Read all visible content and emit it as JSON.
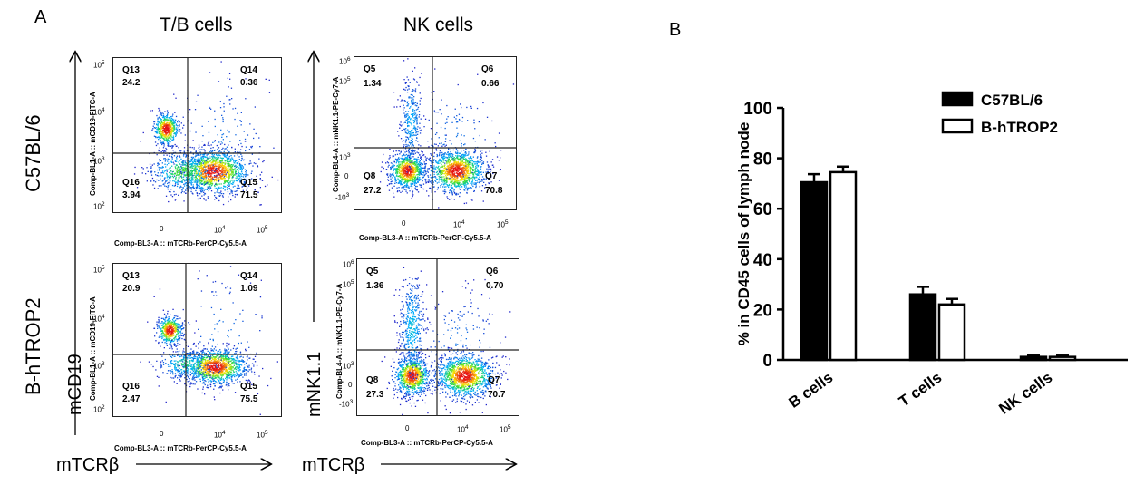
{
  "panel_a": {
    "label": "A",
    "col_titles": [
      "T/B cells",
      "NK cells"
    ],
    "row_labels": [
      "C57BL/6",
      "B-hTROP2"
    ],
    "big_y_left": "mCD19",
    "big_y_right": "mNK1.1",
    "big_x_left": "mTCRβ",
    "big_x_right": "mTCRβ",
    "tb_xtitle": "Comp-BL3-A :: mTCRb-PerCP-Cy5.5-A",
    "tb_ytitle": "Comp-BL1-A :: mCD19-FITC-A",
    "nk_xtitle": "Comp-BL3-A :: mTCRb-PerCP-Cy5.5-A",
    "nk_ytitle": "Comp-BL4-A :: mNK1.1-PE-Cy7-A",
    "tb_yticks": [
      "10",
      "10",
      "10",
      "10"
    ],
    "tb_ytick_exp": [
      "5",
      "4",
      "3",
      "2"
    ],
    "nk_yticks": [
      "10",
      "10",
      "10",
      "0",
      "-10"
    ],
    "nk_ytick_exp": [
      "6",
      "5",
      "3",
      "",
      "3"
    ],
    "xticks": [
      "0",
      "10",
      "10"
    ],
    "xtick_exp": [
      "",
      "4",
      "5"
    ],
    "plots": {
      "tb_c57": {
        "q13": "Q13",
        "v13": "24.2",
        "q14": "Q14",
        "v14": "0.36",
        "q16": "Q16",
        "v16": "3.94",
        "q15": "Q15",
        "v15": "71.5"
      },
      "tb_htrop": {
        "q13": "Q13",
        "v13": "20.9",
        "q14": "Q14",
        "v14": "1.09",
        "q16": "Q16",
        "v16": "2.47",
        "q15": "Q15",
        "v15": "75.5"
      },
      "nk_c57": {
        "q5": "Q5",
        "v5": "1.34",
        "q6": "Q6",
        "v6": "0.66",
        "q8": "Q8",
        "v8": "27.2",
        "q7": "Q7",
        "v7": "70.8"
      },
      "nk_htrop": {
        "q5": "Q5",
        "v5": "1.36",
        "q6": "Q6",
        "v6": "0.70",
        "q8": "Q8",
        "v8": "27.3",
        "q7": "Q7",
        "v7": "70.7"
      }
    }
  },
  "panel_b": {
    "label": "B",
    "legend": [
      "C57BL/6",
      "B-hTROP2"
    ]
  },
  "chart_data": {
    "type": "bar",
    "categories": [
      "B cells",
      "T cells",
      "NK cells"
    ],
    "series": [
      {
        "name": "C57BL/6",
        "values": [
          70.5,
          26,
          1.2
        ],
        "errors": [
          3.2,
          3,
          0.5
        ],
        "color": "#000000"
      },
      {
        "name": "B-hTROP2",
        "values": [
          74.5,
          22,
          1.2
        ],
        "errors": [
          2.2,
          2.2,
          0.5
        ],
        "color": "#ffffff"
      }
    ],
    "ylabel": "% in CD45 cells of lymph node",
    "ylim": [
      0,
      100
    ],
    "yticks": [
      0,
      20,
      40,
      60,
      80,
      100
    ],
    "legend_position": "top-right"
  }
}
